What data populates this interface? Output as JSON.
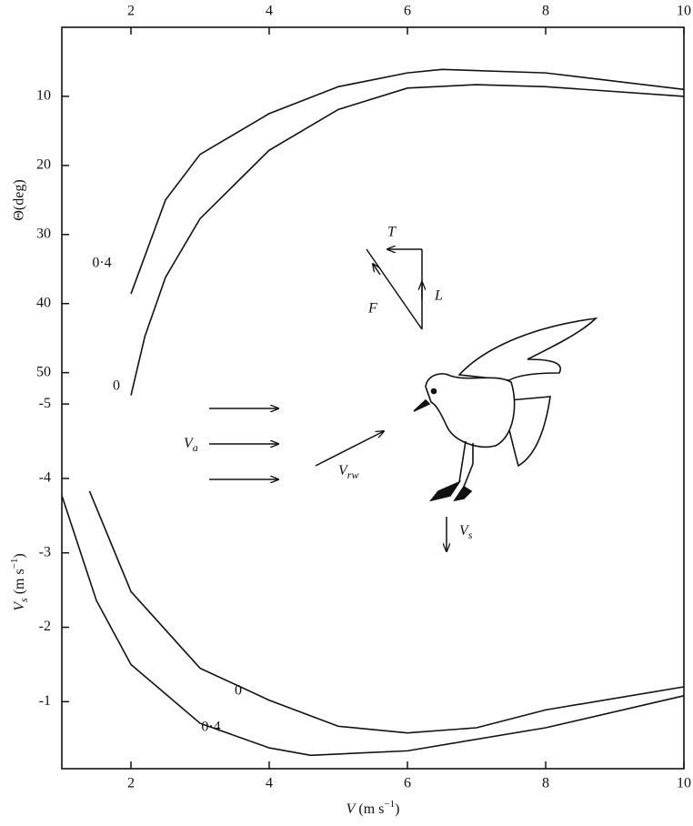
{
  "chart_data": [
    {
      "type": "line",
      "ylabel": "Θ(deg)",
      "xlim": [
        1,
        10
      ],
      "xticks": [
        2,
        4,
        6,
        8,
        10
      ],
      "ylim": [
        54,
        0
      ],
      "yticks": [
        10,
        20,
        30,
        40,
        50
      ],
      "color": "#111111",
      "series": [
        {
          "name": "0·4",
          "x": [
            2,
            2.5,
            3,
            4,
            5,
            6,
            6.5,
            8,
            10
          ],
          "values": [
            38.6,
            25,
            18.4,
            12.5,
            8.6,
            6.6,
            6.1,
            6.6,
            9.0
          ]
        },
        {
          "name": "0",
          "x": [
            2,
            2.2,
            2.5,
            3,
            4,
            5,
            6,
            7,
            8,
            10
          ],
          "values": [
            53.3,
            44.8,
            36.2,
            27.7,
            17.8,
            11.9,
            8.8,
            8.3,
            8.6,
            10
          ]
        }
      ]
    },
    {
      "type": "line",
      "ylabel": [
        "V",
        "s",
        " (m s",
        "−1",
        ")"
      ],
      "xlabel": [
        "V",
        " (m s",
        "−1",
        ")"
      ],
      "xlim": [
        1,
        10
      ],
      "xticks": [
        2,
        4,
        6,
        8,
        10
      ],
      "ylim": [
        -0.1,
        -5.05
      ],
      "yticks": [
        -5,
        -4,
        -3,
        -2,
        -1
      ],
      "color": "#111111",
      "series": [
        {
          "name": "0",
          "x": [
            1.4,
            2,
            3,
            4,
            5,
            6,
            7,
            8,
            10
          ],
          "values": [
            -3.83,
            -2.48,
            -1.45,
            -1.02,
            -0.67,
            -0.58,
            -0.65,
            -0.89,
            -1.2
          ]
        },
        {
          "name": "0·4",
          "x": [
            1,
            1.5,
            2,
            3,
            4,
            4.6,
            6,
            8,
            10
          ],
          "values": [
            -3.77,
            -2.36,
            -1.5,
            -0.71,
            -0.38,
            -0.28,
            -0.34,
            -0.65,
            -1.08
          ]
        }
      ]
    }
  ],
  "annotations": {
    "T": "T",
    "L": "L",
    "F": "F",
    "Va": [
      "V",
      "a"
    ],
    "Vrw": [
      "V",
      "rw"
    ],
    "Vs": [
      "V",
      "s"
    ]
  }
}
